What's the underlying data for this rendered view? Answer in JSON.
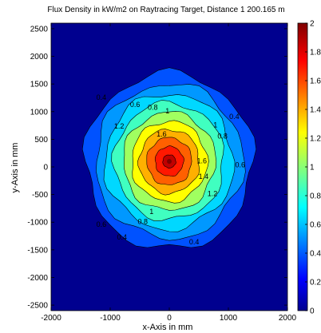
{
  "chart_data": {
    "type": "heatmap",
    "title": "Flux Density in kW/m2 on Raytracing Target, Distance 1 200.165 m",
    "xlabel": "x-Axis in mm",
    "ylabel": "y-Axis in mm",
    "xlim": [
      -2000,
      2000
    ],
    "ylim": [
      -2600,
      2600
    ],
    "xticks": [
      "-2000",
      "-1000",
      "0",
      "1000",
      "2000"
    ],
    "yticks": [
      "2500",
      "2000",
      "1500",
      "1000",
      "500",
      "0",
      "-500",
      "-1000",
      "-1500",
      "-2000",
      "-2500"
    ],
    "colorbar": {
      "min": 0,
      "max": 2,
      "ticks": [
        "2",
        "1.8",
        "1.6",
        "1.4",
        "1.2",
        "1",
        "0.8",
        "0.6",
        "0.4",
        "0.2",
        "0"
      ]
    },
    "peak": {
      "x": 0,
      "y": 100,
      "value": 2.0
    },
    "levels": [
      {
        "value": 0.2,
        "rx": 1420,
        "ry": 1600,
        "color": "#0052ff"
      },
      {
        "value": 0.4,
        "rx": 1250,
        "ry": 1400,
        "color": "#0098ff"
      },
      {
        "value": 0.6,
        "rx": 1090,
        "ry": 1230,
        "color": "#00d8ff"
      },
      {
        "value": 0.8,
        "rx": 930,
        "ry": 1060,
        "color": "#40ffc0"
      },
      {
        "value": 1.0,
        "rx": 780,
        "ry": 890,
        "color": "#a0ff60"
      },
      {
        "value": 1.2,
        "rx": 640,
        "ry": 730,
        "color": "#ffff00"
      },
      {
        "value": 1.4,
        "rx": 510,
        "ry": 580,
        "color": "#ffb000"
      },
      {
        "value": 1.6,
        "rx": 380,
        "ry": 430,
        "color": "#ff6000"
      },
      {
        "value": 1.8,
        "rx": 240,
        "ry": 270,
        "color": "#ff1800"
      },
      {
        "value": 1.9,
        "rx": 110,
        "ry": 120,
        "color": "#c00000"
      }
    ],
    "contour_labels": [
      {
        "text": "0.4",
        "x": -1150,
        "y": 1250
      },
      {
        "text": "0.6",
        "x": -580,
        "y": 1120
      },
      {
        "text": "0.8",
        "x": -280,
        "y": 1070
      },
      {
        "text": "1",
        "x": -30,
        "y": 1000
      },
      {
        "text": "0.4",
        "x": 1100,
        "y": 900
      },
      {
        "text": "1",
        "x": 780,
        "y": 750
      },
      {
        "text": "1.2",
        "x": -850,
        "y": 730
      },
      {
        "text": "0.8",
        "x": 900,
        "y": 550
      },
      {
        "text": "1.6",
        "x": -130,
        "y": 580
      },
      {
        "text": "1.6",
        "x": 550,
        "y": 100
      },
      {
        "text": "0.6",
        "x": 1200,
        "y": 30
      },
      {
        "text": "1.4",
        "x": 580,
        "y": -180
      },
      {
        "text": "1.2",
        "x": 730,
        "y": -490
      },
      {
        "text": "1",
        "x": -300,
        "y": -820
      },
      {
        "text": "0.8",
        "x": -450,
        "y": -1000
      },
      {
        "text": "0.6",
        "x": -1150,
        "y": -1050
      },
      {
        "text": "0.4",
        "x": -800,
        "y": -1280
      },
      {
        "text": "0.4",
        "x": 420,
        "y": -1370
      }
    ]
  }
}
